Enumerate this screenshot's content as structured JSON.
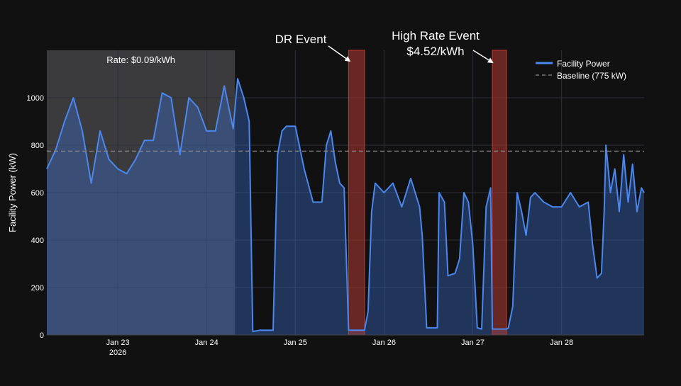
{
  "chart_data": {
    "type": "area",
    "ylabel": "Facility Power (kW)",
    "xlabel": "",
    "ylim": [
      0,
      1200
    ],
    "xlim_days": [
      22.2,
      28.93
    ],
    "yticks": [
      0,
      200,
      400,
      600,
      800,
      1000
    ],
    "xticks": [
      {
        "day": 23,
        "label": "Jan 23",
        "sublabel": "2026"
      },
      {
        "day": 24,
        "label": "Jan 24",
        "sublabel": ""
      },
      {
        "day": 25,
        "label": "Jan 25",
        "sublabel": ""
      },
      {
        "day": 26,
        "label": "Jan 26",
        "sublabel": ""
      },
      {
        "day": 27,
        "label": "Jan 27",
        "sublabel": ""
      },
      {
        "day": 28,
        "label": "Jan 28",
        "sublabel": ""
      }
    ],
    "legend": {
      "placement": "top-right",
      "entries": [
        {
          "label": "Facility Power",
          "style": "solid"
        },
        {
          "label": "Baseline (775 kW)",
          "style": "dashed"
        }
      ]
    },
    "baseline": {
      "value": 775,
      "label": "Baseline (775 kW)"
    },
    "rate_region": {
      "start_day": 22.2,
      "end_day": 24.32,
      "label": "Rate: $0.09/kWh"
    },
    "events": [
      {
        "name": "DR Event",
        "label_lines": [
          "DR Event"
        ],
        "start_day": 25.6,
        "end_day": 25.78
      },
      {
        "name": "High Rate Event",
        "label_lines": [
          "High Rate Event",
          "$4.52/kWh"
        ],
        "start_day": 27.22,
        "end_day": 27.38
      }
    ],
    "series": [
      {
        "name": "Facility Power",
        "x": [
          22.2,
          22.3,
          22.4,
          22.5,
          22.6,
          22.7,
          22.8,
          22.9,
          23.0,
          23.1,
          23.2,
          23.3,
          23.4,
          23.5,
          23.6,
          23.7,
          23.8,
          23.9,
          24.0,
          24.1,
          24.2,
          24.3,
          24.35,
          24.42,
          24.48,
          24.52,
          24.6,
          24.75,
          24.8,
          24.85,
          24.9,
          25.0,
          25.1,
          25.2,
          25.3,
          25.35,
          25.4,
          25.45,
          25.5,
          25.55,
          25.6,
          25.62,
          25.78,
          25.82,
          25.86,
          25.9,
          26.0,
          26.1,
          26.2,
          26.3,
          26.4,
          26.43,
          26.48,
          26.6,
          26.62,
          26.68,
          26.72,
          26.8,
          26.85,
          26.9,
          26.95,
          27.0,
          27.05,
          27.1,
          27.15,
          27.2,
          27.22,
          27.38,
          27.4,
          27.45,
          27.5,
          27.55,
          27.6,
          27.65,
          27.7,
          27.8,
          27.9,
          28.0,
          28.1,
          28.2,
          28.3,
          28.35,
          28.4,
          28.45,
          28.48,
          28.5,
          28.55,
          28.6,
          28.65,
          28.7,
          28.75,
          28.8,
          28.85,
          28.9,
          28.93
        ],
        "y": [
          700,
          780,
          900,
          1000,
          860,
          640,
          860,
          740,
          700,
          680,
          740,
          820,
          820,
          1020,
          1000,
          760,
          1000,
          960,
          860,
          860,
          1050,
          870,
          1080,
          1000,
          900,
          15,
          20,
          20,
          760,
          860,
          880,
          880,
          700,
          560,
          560,
          800,
          860,
          730,
          640,
          620,
          20,
          20,
          20,
          100,
          520,
          640,
          600,
          640,
          540,
          660,
          540,
          420,
          30,
          30,
          600,
          560,
          250,
          260,
          320,
          600,
          560,
          380,
          30,
          25,
          540,
          620,
          25,
          25,
          30,
          120,
          600,
          520,
          420,
          580,
          600,
          560,
          540,
          540,
          600,
          540,
          560,
          380,
          240,
          260,
          520,
          800,
          600,
          700,
          520,
          760,
          560,
          720,
          520,
          620,
          600
        ]
      }
    ]
  }
}
